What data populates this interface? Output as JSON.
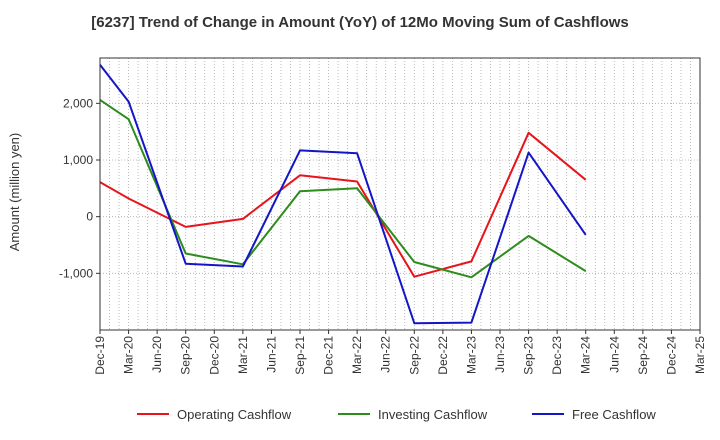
{
  "chart_data": {
    "type": "line",
    "title": "[6237]  Trend of Change in Amount (YoY) of 12Mo Moving Sum of Cashflows",
    "xlabel": "",
    "ylabel": "Amount (million yen)",
    "ylim": [
      -2000,
      2800
    ],
    "yticks": [
      -1000,
      0,
      1000,
      2000
    ],
    "ytick_labels": [
      "-1,000",
      "0",
      "1,000",
      "2,000"
    ],
    "categories": [
      "Dec-19",
      "Mar-20",
      "Jun-20",
      "Sep-20",
      "Dec-20",
      "Mar-21",
      "Jun-21",
      "Sep-21",
      "Dec-21",
      "Mar-22",
      "Jun-22",
      "Sep-22",
      "Dec-22",
      "Mar-23",
      "Jun-23",
      "Sep-23",
      "Dec-23",
      "Mar-24",
      "Jun-24",
      "Sep-24",
      "Dec-24",
      "Mar-25"
    ],
    "grid": true,
    "legend_position": "bottom",
    "series": [
      {
        "name": "Operating Cashflow",
        "color": "#e8141b",
        "points": [
          {
            "x": "Dec-19",
            "y": 610
          },
          {
            "x": "Mar-20",
            "y": 320
          },
          {
            "x": "Sep-20",
            "y": -180
          },
          {
            "x": "Mar-21",
            "y": -40
          },
          {
            "x": "Sep-21",
            "y": 730
          },
          {
            "x": "Mar-22",
            "y": 620
          },
          {
            "x": "Sep-22",
            "y": -1060
          },
          {
            "x": "Mar-23",
            "y": -790
          },
          {
            "x": "Sep-23",
            "y": 1480
          },
          {
            "x": "Mar-24",
            "y": 650
          }
        ]
      },
      {
        "name": "Investing Cashflow",
        "color": "#2e8b1e",
        "points": [
          {
            "x": "Dec-19",
            "y": 2060
          },
          {
            "x": "Mar-20",
            "y": 1720
          },
          {
            "x": "Sep-20",
            "y": -650
          },
          {
            "x": "Mar-21",
            "y": -840
          },
          {
            "x": "Sep-21",
            "y": 450
          },
          {
            "x": "Mar-22",
            "y": 500
          },
          {
            "x": "Sep-22",
            "y": -800
          },
          {
            "x": "Mar-23",
            "y": -1070
          },
          {
            "x": "Sep-23",
            "y": -340
          },
          {
            "x": "Mar-24",
            "y": -960
          }
        ]
      },
      {
        "name": "Free Cashflow",
        "color": "#1515c8",
        "points": [
          {
            "x": "Dec-19",
            "y": 2680
          },
          {
            "x": "Mar-20",
            "y": 2030
          },
          {
            "x": "Sep-20",
            "y": -830
          },
          {
            "x": "Mar-21",
            "y": -880
          },
          {
            "x": "Sep-21",
            "y": 1170
          },
          {
            "x": "Mar-22",
            "y": 1120
          },
          {
            "x": "Sep-22",
            "y": -1880
          },
          {
            "x": "Mar-23",
            "y": -1870
          },
          {
            "x": "Sep-23",
            "y": 1130
          },
          {
            "x": "Mar-24",
            "y": -320
          }
        ]
      }
    ]
  }
}
